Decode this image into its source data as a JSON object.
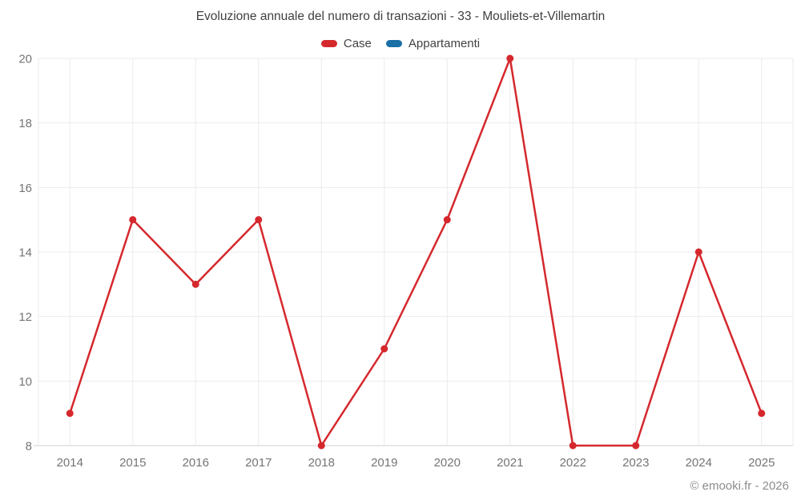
{
  "title": "Evoluzione annuale del numero di transazioni - 33 - Mouliets-et-Villemartin",
  "legend": [
    {
      "label": "Case",
      "color": "#d5282d"
    },
    {
      "label": "Appartamenti",
      "color": "#1a6fa5"
    }
  ],
  "footer": "© emooki.fr - 2026",
  "chart_data": {
    "type": "line",
    "title": "Evoluzione annuale del numero di transazioni - 33 - Mouliets-et-Villemartin",
    "categories": [
      "2014",
      "2015",
      "2016",
      "2017",
      "2018",
      "2019",
      "2020",
      "2021",
      "2022",
      "2023",
      "2024",
      "2025"
    ],
    "series": [
      {
        "name": "Case",
        "color": "#d5282d",
        "values": [
          9,
          15,
          13,
          15,
          8,
          11,
          15,
          20,
          8,
          8,
          14,
          9
        ]
      },
      {
        "name": "Appartamenti",
        "color": "#1a6fa5",
        "values": []
      }
    ],
    "xlabel": "",
    "ylabel": "",
    "ylim": [
      8,
      20
    ],
    "yticks": [
      8,
      10,
      12,
      14,
      16,
      18,
      20
    ],
    "grid": true,
    "legend_position": "top",
    "marker_radius": 4.5,
    "line_width": 2.5,
    "colors": {
      "grid": "#ebebeb",
      "axis": "#cfcfcf",
      "tick_label": "#757575",
      "title": "#3f3f3f"
    }
  }
}
